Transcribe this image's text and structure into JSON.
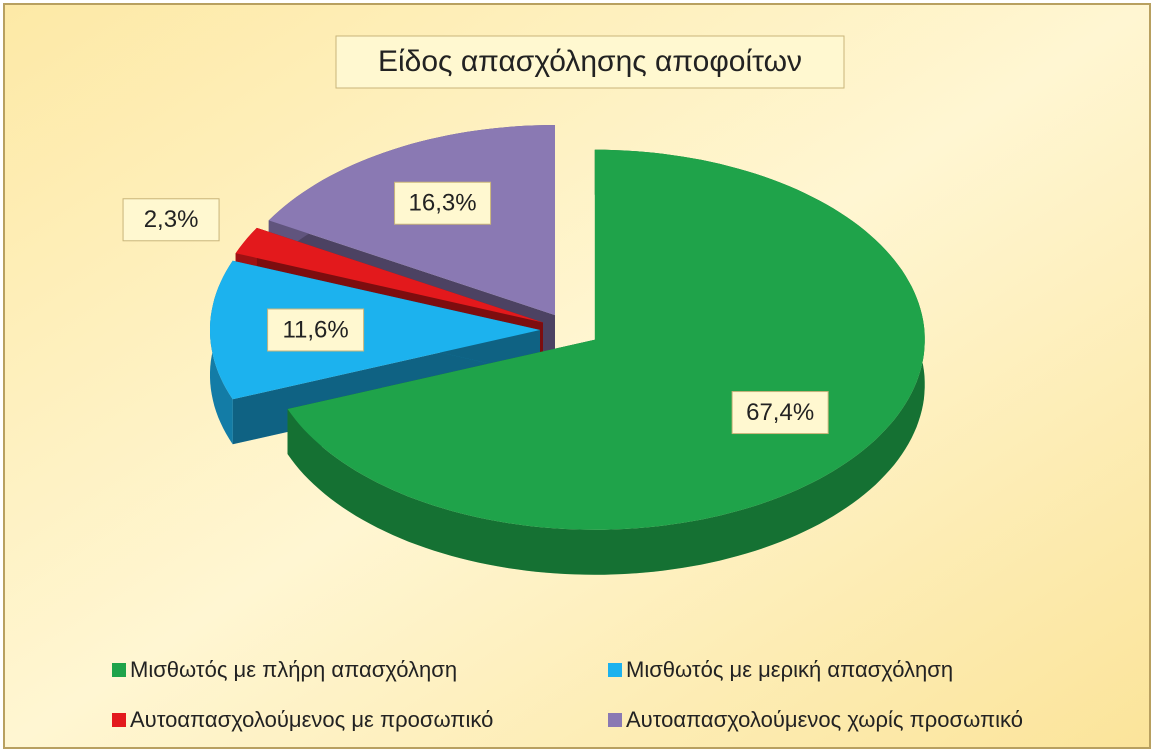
{
  "chart_data": {
    "type": "pie",
    "title": "Είδος απασχόλησης αποφοίτων",
    "categories": [
      "Μισθωτός με πλήρη απασχόληση",
      "Μισθωτός με μερική απασχόληση",
      "Αυτοαπασχολούμενος με  προσωπικό",
      "Αυτοαπασχολούμενος χωρίς προσωπικό"
    ],
    "values": [
      67.4,
      11.6,
      2.3,
      16.3
    ],
    "value_labels": [
      "67,4%",
      "11,6%",
      "2,3%",
      "16,3%"
    ],
    "colors": [
      "#1fa34a",
      "#1cb2ee",
      "#e3191c",
      "#8a79b3"
    ],
    "legend": "bottom"
  }
}
